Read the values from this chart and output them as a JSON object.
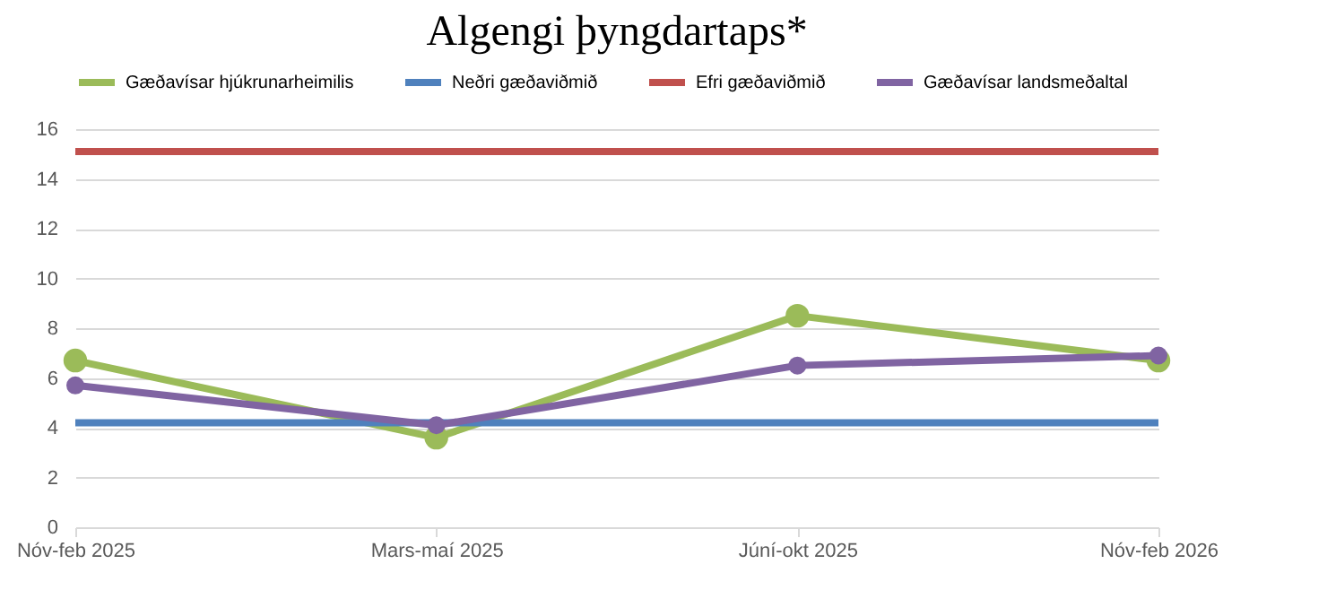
{
  "chart_data": {
    "type": "line",
    "title": "Algengi þyngdartaps*",
    "categories": [
      "Nóv-feb 2025",
      "Mars-maí 2025",
      "Júní-okt 2025",
      "Nóv-feb 2026"
    ],
    "series": [
      {
        "name": "Gæðavísar hjúkrunarheimilis",
        "color": "#9bbb59",
        "marker": "circle",
        "values": [
          6.7,
          3.6,
          8.5,
          6.7
        ]
      },
      {
        "name": "Neðri gæðaviðmið",
        "color": "#4f81bd",
        "marker": "none",
        "values": [
          4.2,
          4.2,
          4.2,
          4.2
        ]
      },
      {
        "name": "Efri gæðaviðmið",
        "color": "#c0504d",
        "marker": "none",
        "values": [
          15.1,
          15.1,
          15.1,
          15.1
        ]
      },
      {
        "name": "Gæðavísar landsmeðaltal",
        "color": "#8064a2",
        "marker": "circle",
        "values": [
          5.7,
          4.1,
          6.5,
          6.9
        ]
      }
    ],
    "ylim": [
      0,
      16
    ],
    "yticks": [
      0,
      2,
      4,
      6,
      8,
      10,
      12,
      14,
      16
    ],
    "grid": "y",
    "legend": "top"
  }
}
